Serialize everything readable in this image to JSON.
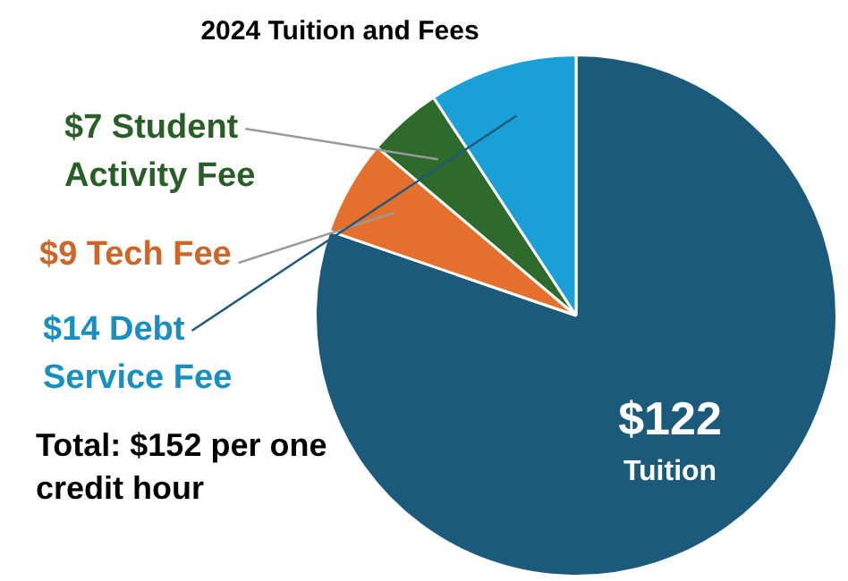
{
  "chart_data": {
    "type": "pie",
    "title": "2024 Tuition and Fees",
    "categories": [
      "Tuition",
      "Tech Fee",
      "Student Activity Fee",
      "Debt Service Fee"
    ],
    "values": [
      122,
      9,
      7,
      14
    ],
    "value_labels": [
      "$122",
      "$9",
      "$7",
      "$14"
    ],
    "colors": [
      "#1b5a7a",
      "#e5702d",
      "#2d6a2b",
      "#1aa0d6"
    ],
    "annotations": [
      "Total: $152 per one credit hour"
    ],
    "legend": false
  }
}
